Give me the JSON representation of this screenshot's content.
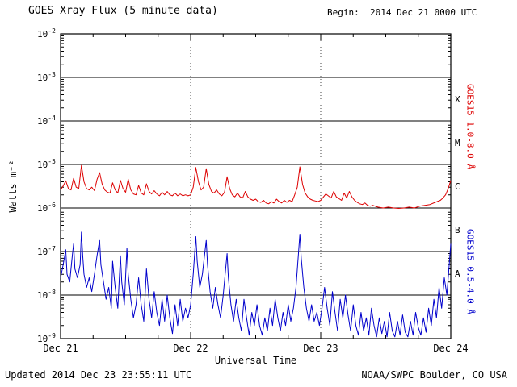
{
  "header": {
    "title": "GOES Xray Flux (5 minute data)",
    "begin": "Begin:  2014 Dec 21 0000 UTC"
  },
  "footer": {
    "updated": "Updated 2014 Dec 23 23:55:11 UTC",
    "credit": "NOAA/SWPC Boulder, CO USA"
  },
  "axes": {
    "ylabel": "Watts m⁻²",
    "xlabel": "Universal Time"
  },
  "right_labels": {
    "long": "GOES15 1.0-8.0 Å",
    "short": "GOES15 0.5-4.0 Å"
  },
  "colors": {
    "long": "#dd0000",
    "short": "#0000cc",
    "frame": "#000000"
  },
  "chart_data": {
    "type": "line",
    "title": "GOES Xray Flux (5 minute data)",
    "xlabel": "Universal Time",
    "ylabel": "Watts m⁻²",
    "x_unit": "days since 2014 Dec 21 0000 UTC",
    "x_range_days": [
      0,
      3
    ],
    "x_ticks": [
      "Dec 21",
      "Dec 22",
      "Dec 23",
      "Dec 24"
    ],
    "y_scale": "log10",
    "y_exponents": [
      -2,
      -3,
      -4,
      -5,
      -6,
      -7,
      -8,
      -9
    ],
    "ylim": [
      1e-09,
      0.01
    ],
    "grid": {
      "horizontal": "solid",
      "vertical_days": "dotted"
    },
    "flare_classes": [
      {
        "label": "X",
        "exp": -3.5
      },
      {
        "label": "M",
        "exp": -4.5
      },
      {
        "label": "C",
        "exp": -5.5
      },
      {
        "label": "B",
        "exp": -6.5
      },
      {
        "label": "A",
        "exp": -7.5
      }
    ],
    "series": [
      {
        "id": "xray-long",
        "name": "GOES15 1.0-8.0 Å",
        "color": "#dd0000",
        "points": [
          [
            0.0,
            2.6e-06
          ],
          [
            0.02,
            3.2e-06
          ],
          [
            0.04,
            4.2e-06
          ],
          [
            0.06,
            2.8e-06
          ],
          [
            0.08,
            2.6e-06
          ],
          [
            0.1,
            4.8e-06
          ],
          [
            0.12,
            3e-06
          ],
          [
            0.14,
            2.8e-06
          ],
          [
            0.16,
            9.5e-06
          ],
          [
            0.18,
            4e-06
          ],
          [
            0.2,
            2.8e-06
          ],
          [
            0.22,
            2.6e-06
          ],
          [
            0.24,
            3e-06
          ],
          [
            0.26,
            2.5e-06
          ],
          [
            0.28,
            4.5e-06
          ],
          [
            0.3,
            6.5e-06
          ],
          [
            0.32,
            3.5e-06
          ],
          [
            0.34,
            2.6e-06
          ],
          [
            0.36,
            2.3e-06
          ],
          [
            0.38,
            2.2e-06
          ],
          [
            0.4,
            3.8e-06
          ],
          [
            0.42,
            2.6e-06
          ],
          [
            0.44,
            2.2e-06
          ],
          [
            0.46,
            4.3e-06
          ],
          [
            0.48,
            2.8e-06
          ],
          [
            0.5,
            2.3e-06
          ],
          [
            0.52,
            4.6e-06
          ],
          [
            0.54,
            2.6e-06
          ],
          [
            0.56,
            2.1e-06
          ],
          [
            0.58,
            2e-06
          ],
          [
            0.6,
            3.3e-06
          ],
          [
            0.62,
            2.2e-06
          ],
          [
            0.64,
            2e-06
          ],
          [
            0.66,
            3.6e-06
          ],
          [
            0.68,
            2.4e-06
          ],
          [
            0.7,
            2.1e-06
          ],
          [
            0.72,
            2.5e-06
          ],
          [
            0.74,
            2.1e-06
          ],
          [
            0.76,
            1.9e-06
          ],
          [
            0.78,
            2.3e-06
          ],
          [
            0.8,
            2e-06
          ],
          [
            0.82,
            2.4e-06
          ],
          [
            0.84,
            2e-06
          ],
          [
            0.86,
            1.9e-06
          ],
          [
            0.88,
            2.2e-06
          ],
          [
            0.9,
            1.9e-06
          ],
          [
            0.92,
            2.1e-06
          ],
          [
            0.94,
            1.9e-06
          ],
          [
            0.96,
            2e-06
          ],
          [
            0.98,
            1.9e-06
          ],
          [
            1.0,
            2e-06
          ],
          [
            1.02,
            3e-06
          ],
          [
            1.04,
            8.5e-06
          ],
          [
            1.06,
            4e-06
          ],
          [
            1.08,
            2.6e-06
          ],
          [
            1.1,
            3e-06
          ],
          [
            1.12,
            8e-06
          ],
          [
            1.14,
            3.5e-06
          ],
          [
            1.16,
            2.4e-06
          ],
          [
            1.18,
            2.2e-06
          ],
          [
            1.2,
            2.6e-06
          ],
          [
            1.22,
            2.1e-06
          ],
          [
            1.24,
            1.9e-06
          ],
          [
            1.26,
            2.3e-06
          ],
          [
            1.28,
            5.2e-06
          ],
          [
            1.3,
            2.8e-06
          ],
          [
            1.32,
            2e-06
          ],
          [
            1.34,
            1.8e-06
          ],
          [
            1.36,
            2.2e-06
          ],
          [
            1.38,
            1.8e-06
          ],
          [
            1.4,
            1.7e-06
          ],
          [
            1.42,
            2.4e-06
          ],
          [
            1.44,
            1.8e-06
          ],
          [
            1.46,
            1.6e-06
          ],
          [
            1.48,
            1.5e-06
          ],
          [
            1.5,
            1.6e-06
          ],
          [
            1.52,
            1.4e-06
          ],
          [
            1.54,
            1.35e-06
          ],
          [
            1.56,
            1.5e-06
          ],
          [
            1.58,
            1.3e-06
          ],
          [
            1.6,
            1.25e-06
          ],
          [
            1.62,
            1.4e-06
          ],
          [
            1.64,
            1.3e-06
          ],
          [
            1.66,
            1.6e-06
          ],
          [
            1.68,
            1.4e-06
          ],
          [
            1.7,
            1.3e-06
          ],
          [
            1.72,
            1.5e-06
          ],
          [
            1.74,
            1.35e-06
          ],
          [
            1.76,
            1.5e-06
          ],
          [
            1.78,
            1.4e-06
          ],
          [
            1.8,
            2e-06
          ],
          [
            1.82,
            3e-06
          ],
          [
            1.84,
            8.8e-06
          ],
          [
            1.86,
            3.5e-06
          ],
          [
            1.88,
            2.2e-06
          ],
          [
            1.9,
            1.8e-06
          ],
          [
            1.92,
            1.6e-06
          ],
          [
            1.94,
            1.5e-06
          ],
          [
            1.96,
            1.45e-06
          ],
          [
            1.98,
            1.4e-06
          ],
          [
            2.0,
            1.5e-06
          ],
          [
            2.04,
            2.1e-06
          ],
          [
            2.08,
            1.7e-06
          ],
          [
            2.1,
            2.4e-06
          ],
          [
            2.12,
            1.8e-06
          ],
          [
            2.16,
            1.5e-06
          ],
          [
            2.18,
            2.2e-06
          ],
          [
            2.2,
            1.7e-06
          ],
          [
            2.22,
            2.4e-06
          ],
          [
            2.24,
            1.8e-06
          ],
          [
            2.26,
            1.5e-06
          ],
          [
            2.28,
            1.35e-06
          ],
          [
            2.3,
            1.25e-06
          ],
          [
            2.32,
            1.2e-06
          ],
          [
            2.34,
            1.3e-06
          ],
          [
            2.36,
            1.15e-06
          ],
          [
            2.38,
            1.1e-06
          ],
          [
            2.4,
            1.15e-06
          ],
          [
            2.44,
            1.05e-06
          ],
          [
            2.48,
            1e-06
          ],
          [
            2.52,
            1.05e-06
          ],
          [
            2.56,
            1e-06
          ],
          [
            2.6,
            9.8e-07
          ],
          [
            2.64,
            1e-06
          ],
          [
            2.68,
            1.05e-06
          ],
          [
            2.72,
            1e-06
          ],
          [
            2.76,
            1.1e-06
          ],
          [
            2.8,
            1.15e-06
          ],
          [
            2.84,
            1.2e-06
          ],
          [
            2.88,
            1.35e-06
          ],
          [
            2.92,
            1.5e-06
          ],
          [
            2.94,
            1.7e-06
          ],
          [
            2.96,
            2e-06
          ],
          [
            2.98,
            2.8e-06
          ],
          [
            3.0,
            4.3e-06
          ]
        ]
      },
      {
        "id": "xray-short",
        "name": "GOES15 0.5-4.0 Å",
        "color": "#0000cc",
        "points": [
          [
            0.0,
            2.5e-08
          ],
          [
            0.02,
            5e-08
          ],
          [
            0.04,
            1.1e-07
          ],
          [
            0.05,
            3e-08
          ],
          [
            0.07,
            2e-08
          ],
          [
            0.09,
            8e-08
          ],
          [
            0.1,
            1.5e-07
          ],
          [
            0.11,
            4e-08
          ],
          [
            0.13,
            2.5e-08
          ],
          [
            0.15,
            5e-08
          ],
          [
            0.16,
            2.8e-07
          ],
          [
            0.17,
            8e-08
          ],
          [
            0.18,
            3e-08
          ],
          [
            0.2,
            1.5e-08
          ],
          [
            0.22,
            2.5e-08
          ],
          [
            0.24,
            1.2e-08
          ],
          [
            0.26,
            3e-08
          ],
          [
            0.28,
            8e-08
          ],
          [
            0.3,
            1.8e-07
          ],
          [
            0.31,
            5e-08
          ],
          [
            0.33,
            2e-08
          ],
          [
            0.35,
            8e-09
          ],
          [
            0.37,
            1.5e-08
          ],
          [
            0.39,
            5e-09
          ],
          [
            0.4,
            6e-08
          ],
          [
            0.42,
            1.5e-08
          ],
          [
            0.44,
            5e-09
          ],
          [
            0.46,
            8e-08
          ],
          [
            0.47,
            2e-08
          ],
          [
            0.49,
            6e-09
          ],
          [
            0.51,
            1.2e-07
          ],
          [
            0.52,
            3e-08
          ],
          [
            0.54,
            8e-09
          ],
          [
            0.56,
            3e-09
          ],
          [
            0.58,
            6e-09
          ],
          [
            0.6,
            2.5e-08
          ],
          [
            0.62,
            6e-09
          ],
          [
            0.64,
            2.5e-09
          ],
          [
            0.66,
            4e-08
          ],
          [
            0.68,
            8e-09
          ],
          [
            0.7,
            3e-09
          ],
          [
            0.72,
            1.2e-08
          ],
          [
            0.74,
            4e-09
          ],
          [
            0.76,
            2e-09
          ],
          [
            0.78,
            8e-09
          ],
          [
            0.8,
            2.5e-09
          ],
          [
            0.82,
            1e-08
          ],
          [
            0.84,
            3e-09
          ],
          [
            0.86,
            1.3e-09
          ],
          [
            0.88,
            6e-09
          ],
          [
            0.9,
            2e-09
          ],
          [
            0.92,
            8e-09
          ],
          [
            0.94,
            2.5e-09
          ],
          [
            0.96,
            5e-09
          ],
          [
            0.98,
            3e-09
          ],
          [
            1.0,
            6e-09
          ],
          [
            1.02,
            3e-08
          ],
          [
            1.04,
            2.2e-07
          ],
          [
            1.05,
            6e-08
          ],
          [
            1.07,
            1.5e-08
          ],
          [
            1.09,
            3e-08
          ],
          [
            1.12,
            1.8e-07
          ],
          [
            1.13,
            5e-08
          ],
          [
            1.15,
            1.2e-08
          ],
          [
            1.17,
            5e-09
          ],
          [
            1.19,
            1.5e-08
          ],
          [
            1.21,
            6e-09
          ],
          [
            1.23,
            3e-09
          ],
          [
            1.25,
            1e-08
          ],
          [
            1.28,
            9e-08
          ],
          [
            1.29,
            2.5e-08
          ],
          [
            1.31,
            6e-09
          ],
          [
            1.33,
            2.5e-09
          ],
          [
            1.35,
            8e-09
          ],
          [
            1.37,
            3e-09
          ],
          [
            1.39,
            1.5e-09
          ],
          [
            1.41,
            8e-09
          ],
          [
            1.43,
            3e-09
          ],
          [
            1.45,
            1.2e-09
          ],
          [
            1.47,
            4e-09
          ],
          [
            1.49,
            2e-09
          ],
          [
            1.51,
            6e-09
          ],
          [
            1.53,
            2e-09
          ],
          [
            1.55,
            1.2e-09
          ],
          [
            1.57,
            3e-09
          ],
          [
            1.59,
            1.5e-09
          ],
          [
            1.61,
            5e-09
          ],
          [
            1.63,
            2e-09
          ],
          [
            1.65,
            8e-09
          ],
          [
            1.67,
            3e-09
          ],
          [
            1.69,
            1.5e-09
          ],
          [
            1.71,
            4e-09
          ],
          [
            1.73,
            2e-09
          ],
          [
            1.75,
            6e-09
          ],
          [
            1.77,
            2.5e-09
          ],
          [
            1.79,
            5e-09
          ],
          [
            1.81,
            1.5e-08
          ],
          [
            1.84,
            2.5e-07
          ],
          [
            1.85,
            7e-08
          ],
          [
            1.87,
            1.5e-08
          ],
          [
            1.89,
            5e-09
          ],
          [
            1.91,
            2.5e-09
          ],
          [
            1.93,
            6e-09
          ],
          [
            1.95,
            2.5e-09
          ],
          [
            1.97,
            4e-09
          ],
          [
            1.99,
            2e-09
          ],
          [
            2.01,
            5e-09
          ],
          [
            2.03,
            1.5e-08
          ],
          [
            2.05,
            5e-09
          ],
          [
            2.07,
            2e-09
          ],
          [
            2.09,
            1.2e-08
          ],
          [
            2.11,
            4e-09
          ],
          [
            2.13,
            1.5e-09
          ],
          [
            2.15,
            8e-09
          ],
          [
            2.17,
            3e-09
          ],
          [
            2.19,
            1e-08
          ],
          [
            2.21,
            3.5e-09
          ],
          [
            2.23,
            1.5e-09
          ],
          [
            2.25,
            6e-09
          ],
          [
            2.27,
            2e-09
          ],
          [
            2.29,
            1.2e-09
          ],
          [
            2.31,
            4e-09
          ],
          [
            2.33,
            1.5e-09
          ],
          [
            2.35,
            3e-09
          ],
          [
            2.37,
            1.2e-09
          ],
          [
            2.39,
            5e-09
          ],
          [
            2.41,
            2e-09
          ],
          [
            2.43,
            1.1e-09
          ],
          [
            2.45,
            3e-09
          ],
          [
            2.47,
            1.3e-09
          ],
          [
            2.49,
            2.5e-09
          ],
          [
            2.51,
            1.1e-09
          ],
          [
            2.53,
            4e-09
          ],
          [
            2.55,
            1.5e-09
          ],
          [
            2.57,
            1.1e-09
          ],
          [
            2.59,
            2.5e-09
          ],
          [
            2.61,
            1.2e-09
          ],
          [
            2.63,
            3.5e-09
          ],
          [
            2.65,
            1.4e-09
          ],
          [
            2.67,
            1.1e-09
          ],
          [
            2.69,
            2.5e-09
          ],
          [
            2.71,
            1.2e-09
          ],
          [
            2.73,
            4e-09
          ],
          [
            2.75,
            1.8e-09
          ],
          [
            2.77,
            1.2e-09
          ],
          [
            2.79,
            3e-09
          ],
          [
            2.81,
            1.4e-09
          ],
          [
            2.83,
            5e-09
          ],
          [
            2.85,
            2e-09
          ],
          [
            2.87,
            8e-09
          ],
          [
            2.89,
            3e-09
          ],
          [
            2.91,
            1.5e-08
          ],
          [
            2.93,
            5e-09
          ],
          [
            2.95,
            2.5e-08
          ],
          [
            2.97,
            1e-08
          ],
          [
            2.99,
            6e-08
          ],
          [
            3.0,
            1.5e-07
          ]
        ]
      }
    ]
  }
}
